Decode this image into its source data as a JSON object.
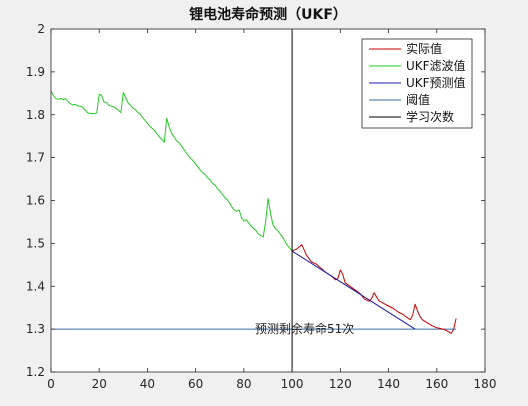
{
  "chart_data": {
    "type": "line",
    "title": "锂电池寿命预测（UKF）",
    "xlabel": "",
    "ylabel": "",
    "xlim": [
      0,
      180
    ],
    "ylim": [
      1.2,
      2.0
    ],
    "x_ticks": [
      0,
      20,
      40,
      60,
      80,
      100,
      120,
      140,
      160,
      180
    ],
    "y_ticks": [
      1.2,
      1.3,
      1.4,
      1.5,
      1.6,
      1.7,
      1.8,
      1.9,
      2.0
    ],
    "x_tick_labels": [
      "0",
      "20",
      "40",
      "60",
      "80",
      "100",
      "120",
      "140",
      "160",
      "180"
    ],
    "y_tick_labels": [
      "1.2",
      "1.3",
      "1.4",
      "1.5",
      "1.6",
      "1.7",
      "1.8",
      "1.9",
      "2"
    ],
    "grid": false,
    "legend_position": "top-right",
    "annotation": "预测剩余寿命51次",
    "series": [
      {
        "name": "实际值",
        "color": "#cc0000",
        "x": [
          100,
          102,
          104,
          106,
          108,
          110,
          112,
          114,
          116,
          118,
          119,
          120,
          121,
          122,
          124,
          126,
          128,
          130,
          132,
          133,
          134,
          136,
          138,
          140,
          142,
          144,
          146,
          148,
          149,
          150,
          151,
          152,
          153,
          154,
          156,
          158,
          160,
          162,
          164,
          166,
          167,
          168
        ],
        "y": [
          1.482,
          1.487,
          1.497,
          1.472,
          1.457,
          1.452,
          1.442,
          1.432,
          1.425,
          1.415,
          1.418,
          1.438,
          1.428,
          1.408,
          1.4,
          1.392,
          1.384,
          1.37,
          1.365,
          1.372,
          1.385,
          1.366,
          1.36,
          1.354,
          1.348,
          1.34,
          1.334,
          1.326,
          1.322,
          1.333,
          1.358,
          1.343,
          1.33,
          1.322,
          1.315,
          1.308,
          1.303,
          1.301,
          1.297,
          1.29,
          1.3,
          1.325
        ]
      },
      {
        "name": "UKF滤波值",
        "color": "#22cc22",
        "x": [
          0,
          1,
          2,
          3,
          4,
          5,
          6,
          7,
          8,
          9,
          10,
          11,
          12,
          13,
          14,
          15,
          16,
          17,
          18,
          19,
          20,
          21,
          22,
          23,
          24,
          25,
          26,
          27,
          28,
          29,
          30,
          31,
          32,
          33,
          34,
          35,
          36,
          37,
          38,
          39,
          40,
          41,
          42,
          43,
          44,
          45,
          46,
          47,
          48,
          49,
          50,
          51,
          52,
          53,
          54,
          55,
          56,
          57,
          58,
          59,
          60,
          61,
          62,
          63,
          64,
          65,
          66,
          67,
          68,
          69,
          70,
          71,
          72,
          73,
          74,
          75,
          76,
          77,
          78,
          79,
          80,
          81,
          82,
          83,
          84,
          85,
          86,
          87,
          88,
          89,
          90,
          91,
          92,
          93,
          94,
          95,
          96,
          97,
          98,
          99,
          100
        ],
        "y": [
          1.855,
          1.845,
          1.838,
          1.836,
          1.838,
          1.835,
          1.838,
          1.831,
          1.826,
          1.823,
          1.824,
          1.821,
          1.82,
          1.818,
          1.812,
          1.805,
          1.803,
          1.803,
          1.802,
          1.805,
          1.848,
          1.845,
          1.83,
          1.828,
          1.822,
          1.82,
          1.818,
          1.815,
          1.81,
          1.805,
          1.852,
          1.84,
          1.827,
          1.822,
          1.815,
          1.812,
          1.805,
          1.802,
          1.793,
          1.787,
          1.78,
          1.773,
          1.768,
          1.763,
          1.755,
          1.748,
          1.742,
          1.736,
          1.792,
          1.772,
          1.757,
          1.748,
          1.74,
          1.735,
          1.728,
          1.72,
          1.712,
          1.705,
          1.698,
          1.692,
          1.685,
          1.678,
          1.67,
          1.665,
          1.66,
          1.653,
          1.648,
          1.64,
          1.636,
          1.628,
          1.622,
          1.615,
          1.608,
          1.602,
          1.595,
          1.585,
          1.578,
          1.575,
          1.578,
          1.56,
          1.552,
          1.555,
          1.548,
          1.54,
          1.535,
          1.53,
          1.522,
          1.518,
          1.515,
          1.55,
          1.605,
          1.572,
          1.545,
          1.535,
          1.53,
          1.522,
          1.515,
          1.505,
          1.496,
          1.489,
          1.482
        ]
      },
      {
        "name": "UKF预测值",
        "color": "#1a1aa6",
        "x": [
          100,
          151
        ],
        "y": [
          1.482,
          1.3
        ]
      },
      {
        "name": "阈值",
        "color": "#3a6ea5",
        "x": [
          0,
          168
        ],
        "y": [
          1.3,
          1.3
        ]
      },
      {
        "name": "学习次数",
        "color": "#000000",
        "x": [
          100,
          100
        ],
        "y": [
          1.2,
          2.0
        ]
      }
    ]
  }
}
